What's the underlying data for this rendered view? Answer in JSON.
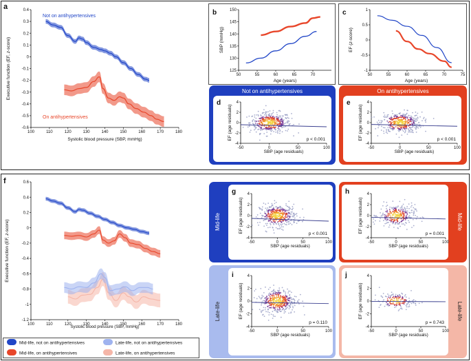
{
  "chart_data": {
    "type": "line",
    "description_free": true,
    "colors": {
      "blue": "#2146c7",
      "red": "#e8462a",
      "light_blue": "#9fb3ef",
      "light_red": "#f5b6a8",
      "scatter_gray": "#9aa0c6",
      "box_blue_dark": "#1f3fbf",
      "box_red_dark": "#e2401f",
      "box_blue_light": "#a9bbee",
      "box_red_light": "#f4b7a7"
    },
    "panel_a": {
      "label": "a",
      "xlabel": "Systolic blood pressure (SBP, mmHg)",
      "ylabel_pre": "Executive function (EF, ",
      "ylabel_italic": "z",
      "ylabel_post": "-score)",
      "xlim": [
        100,
        180
      ],
      "ylim": [
        -0.6,
        0.4
      ],
      "xticks": [
        "100",
        "110",
        "120",
        "130",
        "140",
        "150",
        "160",
        "170",
        "180"
      ],
      "yticks": [
        "0.4",
        "0.3",
        "0.2",
        "0.1",
        "0",
        "-0.1",
        "-0.2",
        "-0.3",
        "-0.4",
        "-0.5",
        "-0.6"
      ],
      "series": [
        {
          "name": "Not on antihypertensives",
          "color": "blue",
          "ci": 0.02,
          "x": [
            108,
            112,
            116,
            120,
            124,
            126,
            128,
            130,
            134,
            138,
            140,
            143,
            146,
            150,
            154,
            158,
            162,
            164
          ],
          "y": [
            0.3,
            0.27,
            0.25,
            0.18,
            0.13,
            0.16,
            0.15,
            0.12,
            0.08,
            0.06,
            0.05,
            0.03,
            0.0,
            -0.05,
            -0.1,
            -0.15,
            -0.19,
            -0.2
          ]
        },
        {
          "name": "On antihypertensives",
          "color": "red",
          "ci": 0.045,
          "x": [
            118,
            122,
            126,
            130,
            134,
            137,
            139,
            142,
            145,
            148,
            150,
            153,
            157,
            161,
            165,
            168,
            172
          ],
          "y": [
            -0.28,
            -0.29,
            -0.27,
            -0.26,
            -0.21,
            -0.17,
            -0.27,
            -0.35,
            -0.37,
            -0.34,
            -0.35,
            -0.4,
            -0.44,
            -0.47,
            -0.5,
            -0.53,
            -0.55
          ]
        }
      ],
      "labels": [
        "Not on antihypertensives",
        "On antihypertensives"
      ]
    },
    "panel_b": {
      "label": "b",
      "xlabel": "Age (years)",
      "ylabel": "SBP (mmHg)",
      "xlim": [
        50,
        75
      ],
      "ylim": [
        125,
        150
      ],
      "xticks": [
        "50",
        "55",
        "60",
        "65",
        "70"
      ],
      "yticks": [
        "125",
        "130",
        "135",
        "140",
        "145",
        "150"
      ],
      "series": [
        {
          "name": "Not on antihypertensives",
          "color": "blue",
          "x": [
            52,
            56,
            60,
            64,
            68,
            71
          ],
          "y": [
            128,
            130,
            133,
            136,
            139,
            141
          ]
        },
        {
          "name": "On antihypertensives",
          "color": "red",
          "x": [
            56,
            60,
            64,
            68,
            70,
            72
          ],
          "y": [
            139.5,
            141,
            143,
            144.5,
            146.5,
            147
          ]
        }
      ]
    },
    "panel_c": {
      "label": "c",
      "xlabel": "Age (years)",
      "ylabel_pre": "EF (",
      "ylabel_italic": "z",
      "ylabel_post": "-score)",
      "xlim": [
        50,
        75
      ],
      "ylim": [
        -1,
        1
      ],
      "xticks": [
        "50",
        "55",
        "60",
        "65",
        "70",
        "75"
      ],
      "yticks": [
        "1",
        "0.5",
        "0",
        "-0.5",
        "-1"
      ],
      "series": [
        {
          "name": "Not on antihypertensives",
          "color": "blue",
          "x": [
            52,
            56,
            60,
            64,
            68,
            72
          ],
          "y": [
            0.8,
            0.65,
            0.45,
            0.15,
            -0.25,
            -0.75
          ]
        },
        {
          "name": "On antihypertensives",
          "color": "red",
          "x": [
            57,
            60,
            63,
            66,
            70,
            72
          ],
          "y": [
            0.3,
            -0.05,
            -0.3,
            -0.45,
            -0.7,
            -0.9
          ]
        }
      ]
    },
    "scatter_axes": {
      "xlabel": "SBP (age residuals)",
      "ylabel": "EF (age residuals)",
      "xlim": [
        -50,
        100
      ],
      "ylim": [
        -4,
        4
      ],
      "xticks": [
        "-50",
        "0",
        "50",
        "100"
      ],
      "yticks": [
        "4",
        "2",
        "0",
        "-2",
        "-4"
      ]
    },
    "scatter_panels": [
      {
        "label": "d",
        "box": "Not on antihypertensives",
        "p_text": "p < 0.001",
        "slope": -0.008,
        "density": "high"
      },
      {
        "label": "e",
        "box": "On antihypertensives",
        "p_text": "p < 0.001",
        "slope": -0.007,
        "density": "high"
      },
      {
        "label": "g",
        "box": "Mid-life",
        "p_text": "p < 0.001",
        "slope": -0.01,
        "density": "high"
      },
      {
        "label": "h",
        "box": "Mid-life",
        "p_text": "p = 0.001",
        "slope": -0.006,
        "density": "medium"
      },
      {
        "label": "i",
        "box": "Late-life",
        "p_text": "p = 0.110",
        "slope": -0.004,
        "density": "high"
      },
      {
        "label": "j",
        "box": "Late-life",
        "p_text": "p = 0.743",
        "slope": -0.001,
        "density": "low"
      }
    ],
    "panel_f": {
      "label": "f",
      "xlabel": "Systolic blood pressure (SBP, mmHg)",
      "ylabel_pre": "Executive function (EF, ",
      "ylabel_italic": "z",
      "ylabel_post": "-score)",
      "xlim": [
        100,
        180
      ],
      "ylim": [
        -1.2,
        0.6
      ],
      "xticks": [
        "100",
        "110",
        "120",
        "130",
        "140",
        "150",
        "160",
        "170",
        "180"
      ],
      "yticks": [
        "0.6",
        "0.4",
        "0.2",
        "0",
        "-0.2",
        "-0.4",
        "-0.6",
        "-0.8",
        "-1",
        "-1.2"
      ],
      "series": [
        {
          "name": "Mid-life, not on antihypertensives",
          "color": "blue",
          "ci": 0.025,
          "x": [
            108,
            112,
            116,
            120,
            124,
            126,
            128,
            132,
            136,
            140,
            144,
            148,
            152,
            156,
            160,
            164
          ],
          "y": [
            0.38,
            0.35,
            0.32,
            0.26,
            0.21,
            0.24,
            0.23,
            0.19,
            0.15,
            0.11,
            0.07,
            0.03,
            0.0,
            -0.02,
            -0.05,
            -0.07
          ]
        },
        {
          "name": "Mid-life, on antihypertensives",
          "color": "red",
          "ci": 0.05,
          "x": [
            118,
            122,
            126,
            130,
            134,
            137,
            139,
            142,
            145,
            148,
            151,
            154,
            158,
            162,
            166,
            170
          ],
          "y": [
            -0.1,
            -0.11,
            -0.1,
            -0.12,
            -0.08,
            -0.03,
            -0.16,
            -0.2,
            -0.17,
            -0.08,
            -0.13,
            -0.2,
            -0.22,
            -0.27,
            -0.31,
            -0.34
          ]
        },
        {
          "name": "Late-life, not on antihypertensives",
          "color": "light_blue",
          "ci": 0.07,
          "x": [
            118,
            122,
            126,
            130,
            134,
            138,
            140,
            143,
            147,
            151,
            155,
            159,
            163,
            166
          ],
          "y": [
            -0.78,
            -0.8,
            -0.77,
            -0.78,
            -0.72,
            -0.6,
            -0.65,
            -0.82,
            -0.8,
            -0.77,
            -0.82,
            -0.78,
            -0.78,
            -0.8
          ]
        },
        {
          "name": "Late-life, on antihypertensives",
          "color": "light_red",
          "ci": 0.09,
          "x": [
            120,
            124,
            128,
            132,
            136,
            139,
            142,
            146,
            150,
            153,
            157,
            161,
            165,
            170
          ],
          "y": [
            -0.9,
            -0.93,
            -0.88,
            -0.87,
            -0.78,
            -0.67,
            -0.85,
            -0.95,
            -0.85,
            -0.9,
            -0.97,
            -0.9,
            -0.93,
            -0.95
          ]
        }
      ]
    },
    "legend": [
      {
        "label": "Mid-life, not on antihypertensives",
        "color": "blue"
      },
      {
        "label": "Late-life, not on antihypertensives",
        "color": "light_blue"
      },
      {
        "label": "Mid-life, on antihypertensives",
        "color": "red"
      },
      {
        "label": "Late-life, on antihypertensives",
        "color": "light_red"
      }
    ]
  }
}
